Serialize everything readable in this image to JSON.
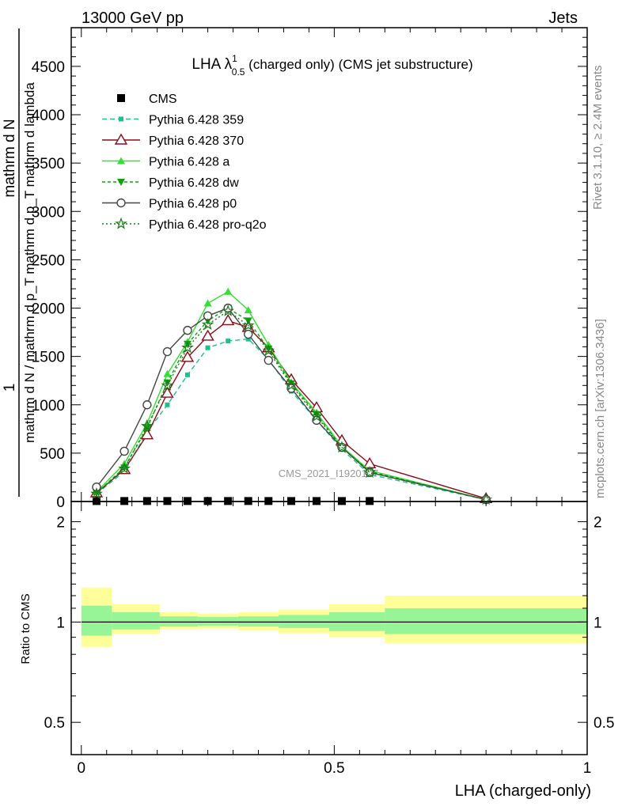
{
  "header": {
    "left": "13000 GeV pp",
    "right": "Jets"
  },
  "side_labels": {
    "rivet": "Rivet 3.1.10, ≥ 2.4M events",
    "mcplots": "mcplots.cern.ch [arXiv:1306.3436]"
  },
  "watermark": "CMS_2021_I1920187",
  "chart_data": [
    {
      "type": "line",
      "title": "LHA λ",
      "title_sup": "1",
      "title_sub": "0.5",
      "title_suffix": " (charged only) (CMS jet substructure)",
      "ylabel_numerator": "1",
      "ylabel_denominator": "mathrm d N / mathrm d p_T mathrm d p_T mathrm d lambda",
      "ylabel_top": "mathrm d N",
      "ylim": [
        0,
        4900
      ],
      "xlim": [
        -0.02,
        1.0
      ],
      "yticks": [
        0,
        500,
        1000,
        1500,
        2000,
        2500,
        3000,
        3500,
        4000,
        4500
      ],
      "ytick_labels": [
        "0",
        "500",
        "1000",
        "1500",
        "2000",
        "2500",
        "3000",
        "3500",
        "4000",
        "4500"
      ],
      "legend_position": "top-left",
      "series": [
        {
          "name": "CMS",
          "color": "#000000",
          "marker": "square",
          "dash": "none",
          "x": [
            0.03,
            0.085,
            0.13,
            0.17,
            0.21,
            0.25,
            0.29,
            0.33,
            0.37,
            0.415,
            0.465,
            0.515,
            0.57
          ],
          "y": [
            5,
            5,
            5,
            5,
            5,
            5,
            5,
            5,
            5,
            5,
            5,
            5,
            5
          ]
        },
        {
          "name": "Pythia 6.428 359",
          "color": "#1fbf8f",
          "marker": "square-small",
          "dash": "6,4",
          "x": [
            0.03,
            0.085,
            0.13,
            0.17,
            0.21,
            0.25,
            0.29,
            0.33,
            0.37,
            0.415,
            0.465,
            0.515,
            0.57,
            0.8
          ],
          "y": [
            80,
            310,
            720,
            1000,
            1310,
            1590,
            1660,
            1680,
            1470,
            1140,
            840,
            540,
            280,
            20
          ]
        },
        {
          "name": "Pythia 6.428 370",
          "color": "#8b0a1a",
          "marker": "triangle-open",
          "dash": "none",
          "x": [
            0.03,
            0.085,
            0.13,
            0.17,
            0.21,
            0.25,
            0.29,
            0.33,
            0.37,
            0.415,
            0.465,
            0.515,
            0.57,
            0.8
          ],
          "y": [
            90,
            330,
            690,
            1120,
            1490,
            1710,
            1870,
            1800,
            1590,
            1260,
            970,
            630,
            390,
            30
          ]
        },
        {
          "name": "Pythia 6.428 a",
          "color": "#33e033",
          "marker": "triangle",
          "dash": "none",
          "x": [
            0.03,
            0.085,
            0.13,
            0.17,
            0.21,
            0.25,
            0.29,
            0.33,
            0.37,
            0.415,
            0.465,
            0.515,
            0.57,
            0.8
          ],
          "y": [
            100,
            390,
            810,
            1320,
            1650,
            2050,
            2170,
            1980,
            1620,
            1230,
            920,
            570,
            320,
            20
          ]
        },
        {
          "name": "Pythia 6.428 dw",
          "color": "#10a010",
          "marker": "triangle-down",
          "dash": "4,3",
          "x": [
            0.03,
            0.085,
            0.13,
            0.17,
            0.21,
            0.25,
            0.29,
            0.33,
            0.37,
            0.415,
            0.465,
            0.515,
            0.57,
            0.8
          ],
          "y": [
            90,
            350,
            760,
            1230,
            1630,
            1870,
            2000,
            1870,
            1580,
            1220,
            900,
            560,
            310,
            20
          ]
        },
        {
          "name": "Pythia 6.428 p0",
          "color": "#444444",
          "marker": "circle-open",
          "dash": "none",
          "x": [
            0.03,
            0.085,
            0.13,
            0.17,
            0.21,
            0.25,
            0.29,
            0.33,
            0.37,
            0.415,
            0.465,
            0.515,
            0.57,
            0.8
          ],
          "y": [
            150,
            520,
            1000,
            1550,
            1770,
            1920,
            2000,
            1730,
            1460,
            1170,
            840,
            560,
            300,
            20
          ]
        },
        {
          "name": "Pythia 6.428 pro-q2o",
          "color": "#1a7a1a",
          "marker": "star",
          "dash": "2,3",
          "x": [
            0.03,
            0.085,
            0.13,
            0.17,
            0.21,
            0.25,
            0.29,
            0.33,
            0.37,
            0.415,
            0.465,
            0.515,
            0.57,
            0.8
          ],
          "y": [
            80,
            340,
            780,
            1200,
            1590,
            1830,
            1970,
            1820,
            1560,
            1200,
            880,
            560,
            300,
            20
          ]
        }
      ]
    },
    {
      "type": "area",
      "ylabel": "Ratio to CMS",
      "xlabel": "LHA (charged-only)",
      "xlim": [
        -0.02,
        1.0
      ],
      "ylim": [
        0.4,
        2.3
      ],
      "scale": "log",
      "yticks": [
        0.5,
        1,
        2
      ],
      "ytick_labels": [
        "0.5",
        "1",
        "2"
      ],
      "xticks": [
        0,
        0.5,
        1
      ],
      "xtick_labels": [
        "0",
        "0.5",
        "1"
      ],
      "bins": [
        {
          "lo": 0.0,
          "hi": 0.06,
          "green": [
            0.91,
            1.12
          ],
          "yellow": [
            0.84,
            1.27
          ]
        },
        {
          "lo": 0.06,
          "hi": 0.155,
          "green": [
            0.95,
            1.07
          ],
          "yellow": [
            0.92,
            1.13
          ]
        },
        {
          "lo": 0.155,
          "hi": 0.23,
          "green": [
            0.97,
            1.04
          ],
          "yellow": [
            0.95,
            1.07
          ]
        },
        {
          "lo": 0.23,
          "hi": 0.31,
          "green": [
            0.975,
            1.035
          ],
          "yellow": [
            0.955,
            1.06
          ]
        },
        {
          "lo": 0.31,
          "hi": 0.39,
          "green": [
            0.97,
            1.04
          ],
          "yellow": [
            0.945,
            1.07
          ]
        },
        {
          "lo": 0.39,
          "hi": 0.49,
          "green": [
            0.96,
            1.05
          ],
          "yellow": [
            0.925,
            1.09
          ]
        },
        {
          "lo": 0.49,
          "hi": 0.6,
          "green": [
            0.94,
            1.07
          ],
          "yellow": [
            0.9,
            1.13
          ]
        },
        {
          "lo": 0.6,
          "hi": 1.0,
          "green": [
            0.92,
            1.1
          ],
          "yellow": [
            0.865,
            1.2
          ]
        }
      ]
    }
  ],
  "colors": {
    "green_band": "#97f597",
    "yellow_band": "#ffff99"
  }
}
